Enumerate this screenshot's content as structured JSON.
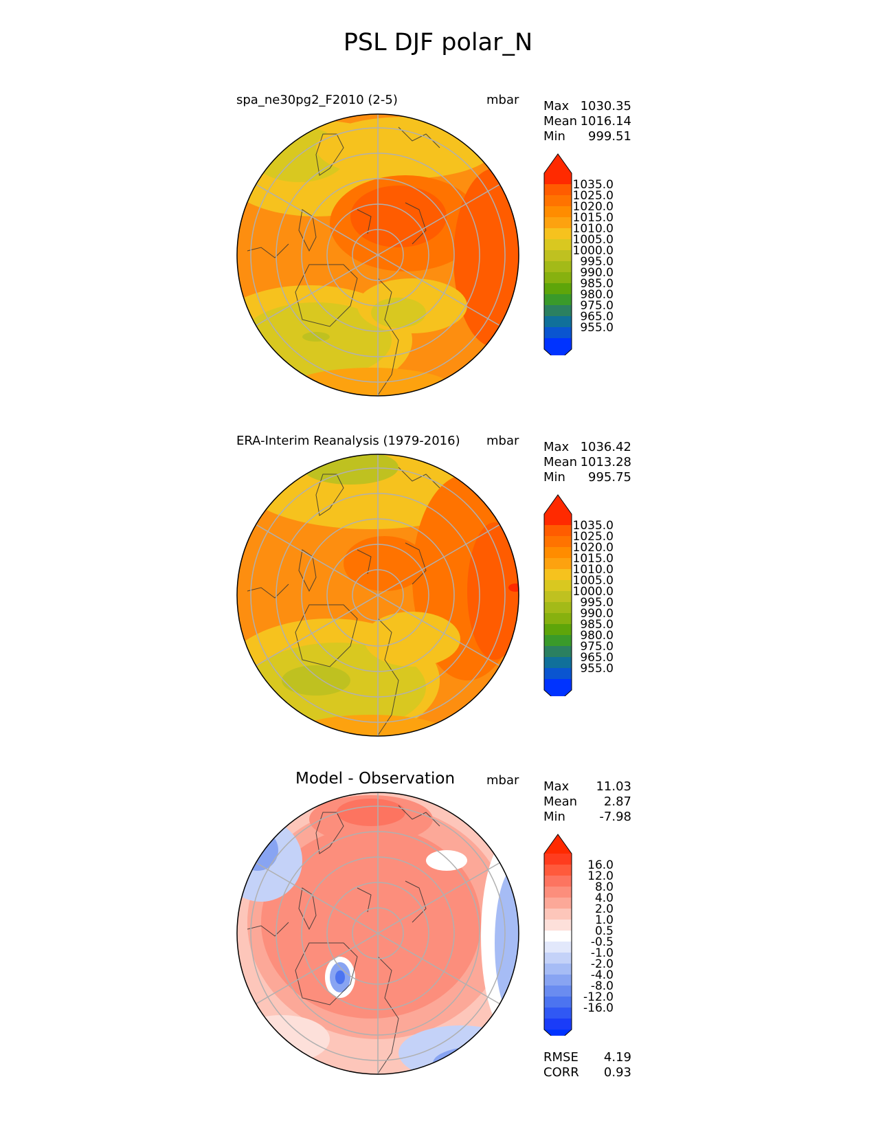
{
  "title": "PSL DJF polar_N",
  "panels": [
    {
      "title": "spa_ne30pg2_F2010 (2-5)",
      "units": "mbar",
      "stats": [
        {
          "label": "Max",
          "value": "1030.35"
        },
        {
          "label": "Mean",
          "value": "1016.14"
        },
        {
          "label": "Min",
          "value": "999.51"
        }
      ],
      "colorbar": {
        "labels": [
          "1035.0",
          "1025.0",
          "1020.0",
          "1015.0",
          "1010.0",
          "1005.0",
          "1000.0",
          "995.0",
          "990.0",
          "985.0",
          "980.0",
          "975.0",
          "965.0",
          "955.0"
        ],
        "colors": [
          "#ff2a00",
          "#ff5c00",
          "#ff7300",
          "#ff8c00",
          "#fda20f",
          "#f6c21e",
          "#d9c820",
          "#bfc120",
          "#a3ba18",
          "#87b10f",
          "#5ea50a",
          "#3a9a2a",
          "#2b8060",
          "#10709a",
          "#0a55d0",
          "#0033ff"
        ],
        "cap_top": "#ff2a00",
        "cap_bottom": "#0033ff"
      }
    },
    {
      "title": "ERA-Interim Reanalysis (1979-2016)",
      "units": "mbar",
      "stats": [
        {
          "label": "Max",
          "value": "1036.42"
        },
        {
          "label": "Mean",
          "value": "1013.28"
        },
        {
          "label": "Min",
          "value": "995.75"
        }
      ],
      "colorbar": {
        "labels": [
          "1035.0",
          "1025.0",
          "1020.0",
          "1015.0",
          "1010.0",
          "1005.0",
          "1000.0",
          "995.0",
          "990.0",
          "985.0",
          "980.0",
          "975.0",
          "965.0",
          "955.0"
        ],
        "colors": [
          "#ff2a00",
          "#ff5c00",
          "#ff7300",
          "#ff8c00",
          "#fda20f",
          "#f6c21e",
          "#d9c820",
          "#bfc120",
          "#a3ba18",
          "#87b10f",
          "#5ea50a",
          "#3a9a2a",
          "#2b8060",
          "#10709a",
          "#0a55d0",
          "#0033ff"
        ],
        "cap_top": "#ff2a00",
        "cap_bottom": "#0033ff"
      }
    },
    {
      "title": "Model - Observation",
      "units": "mbar",
      "stats": [
        {
          "label": "Max",
          "value": "11.03"
        },
        {
          "label": "Mean",
          "value": "2.87"
        },
        {
          "label": "Min",
          "value": "-7.98"
        }
      ],
      "colorbar": {
        "labels": [
          "16.0",
          "12.0",
          "8.0",
          "4.0",
          "2.0",
          "1.0",
          "0.5",
          "-0.5",
          "-1.0",
          "-2.0",
          "-4.0",
          "-8.0",
          "-12.0",
          "-16.0"
        ],
        "colors": [
          "#ff3c1e",
          "#ff5a3c",
          "#fd7460",
          "#fc8e7c",
          "#fca898",
          "#fdc6ba",
          "#fde0da",
          "#ffffff",
          "#e2e8fb",
          "#c4d2f8",
          "#a6bcf5",
          "#88a4f2",
          "#6a8cf0",
          "#4c74f0",
          "#3058f4",
          "#1a3cf8"
        ],
        "cap_top": "#ff2a00",
        "cap_bottom": "#0033ff"
      },
      "metrics": [
        {
          "label": "RMSE",
          "value": "4.19"
        },
        {
          "label": "CORR",
          "value": "0.93"
        }
      ]
    }
  ],
  "chart_data": [
    {
      "type": "heatmap",
      "title": "spa_ne30pg2_F2010 (2-5)",
      "projection": "north polar stereographic",
      "units": "mbar",
      "stats": {
        "max": 1030.35,
        "mean": 1016.14,
        "min": 999.51
      },
      "levels": [
        955,
        965,
        975,
        980,
        985,
        990,
        995,
        1000,
        1005,
        1010,
        1015,
        1020,
        1025,
        1035
      ]
    },
    {
      "type": "heatmap",
      "title": "ERA-Interim Reanalysis (1979-2016)",
      "projection": "north polar stereographic",
      "units": "mbar",
      "stats": {
        "max": 1036.42,
        "mean": 1013.28,
        "min": 995.75
      },
      "levels": [
        955,
        965,
        975,
        980,
        985,
        990,
        995,
        1000,
        1005,
        1010,
        1015,
        1020,
        1025,
        1035
      ]
    },
    {
      "type": "heatmap",
      "title": "Model - Observation",
      "projection": "north polar stereographic",
      "units": "mbar",
      "stats": {
        "max": 11.03,
        "mean": 2.87,
        "min": -7.98
      },
      "levels": [
        -16,
        -12,
        -8,
        -4,
        -2,
        -1,
        -0.5,
        0.5,
        1,
        2,
        4,
        8,
        12,
        16
      ],
      "rmse": 4.19,
      "corr": 0.93
    }
  ]
}
